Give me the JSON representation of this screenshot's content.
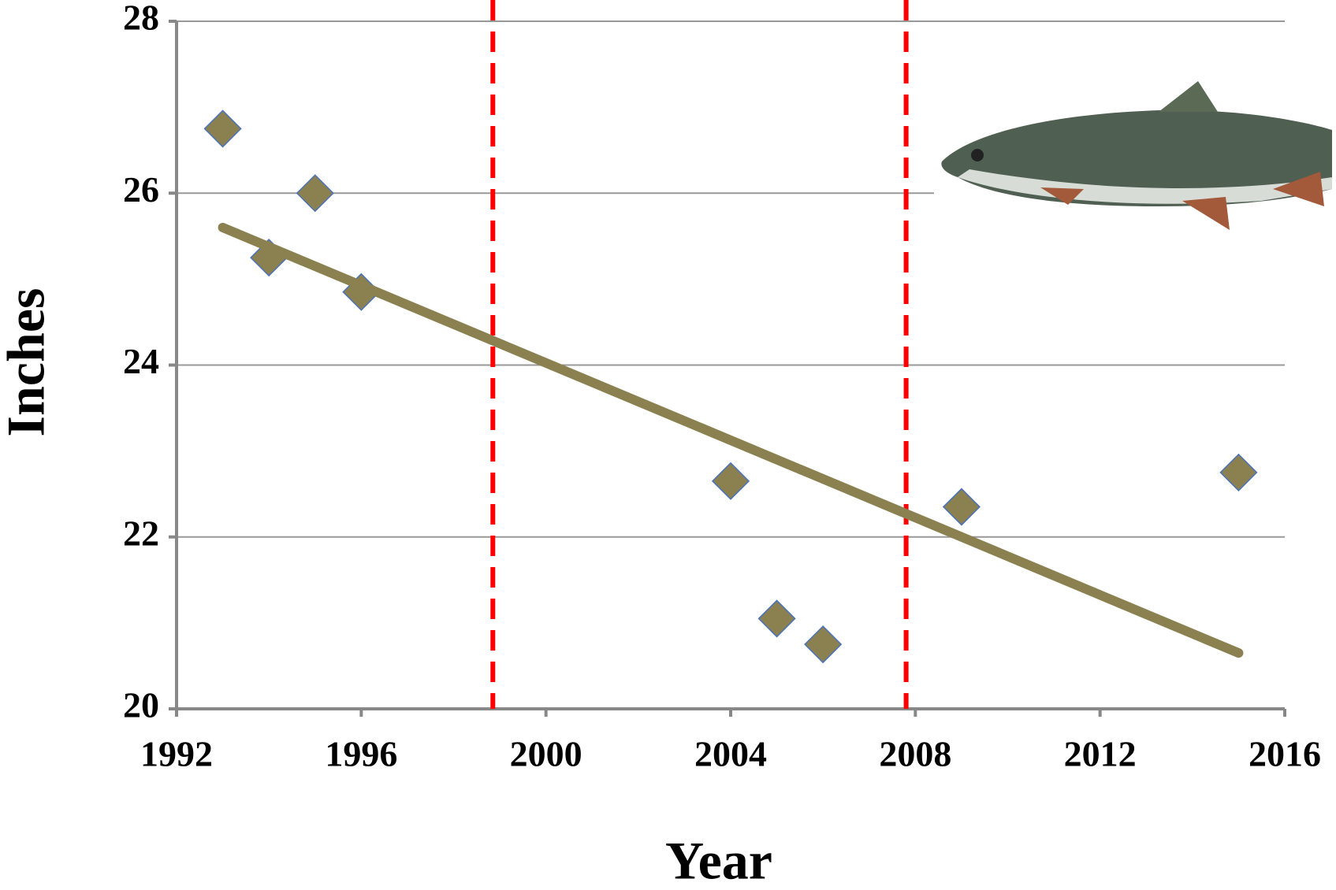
{
  "chart_data": {
    "type": "scatter",
    "x_label": "Year",
    "y_label": "Inches",
    "x": [
      1993,
      1994,
      1995,
      1996,
      2004,
      2005,
      2006,
      2009,
      2015
    ],
    "values": [
      26.75,
      25.25,
      26.0,
      24.85,
      22.65,
      21.05,
      20.75,
      22.35,
      22.75
    ],
    "color": "#8b8050",
    "trendline": {
      "x": [
        1993,
        2015
      ],
      "values": [
        25.6,
        20.65
      ],
      "color": "#8b8050"
    },
    "vlines": {
      "x": [
        1998.85,
        2007.8
      ],
      "color": "#ff0000"
    },
    "xlim": [
      1992,
      2016
    ],
    "xticks": [
      1992,
      1996,
      2000,
      2004,
      2008,
      2012,
      2016
    ],
    "ylim": [
      20,
      28
    ],
    "yticks": [
      20,
      22,
      24,
      26,
      28
    ],
    "grid": true
  }
}
